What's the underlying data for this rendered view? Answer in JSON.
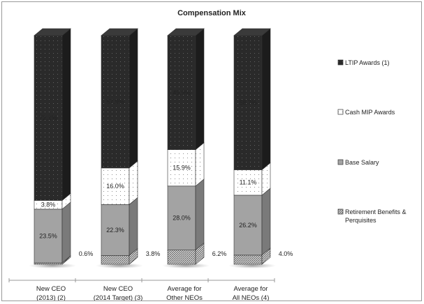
{
  "chart_data": {
    "type": "bar",
    "stacked": true,
    "title": "Compensation Mix",
    "categories": [
      "New CEO\n(2013) (2)",
      "New CEO\n(2014 Target) (3)",
      "Average for\nOther NEOs",
      "Average for\nAll NEOs (4)"
    ],
    "series": [
      {
        "name": "Retirement Benefits & Perquisites",
        "values": [
          0.6,
          3.8,
          6.2,
          4.0
        ],
        "color": "#bbbbbb",
        "pattern": "hatch"
      },
      {
        "name": "Base Salary",
        "values": [
          23.5,
          22.3,
          28.0,
          26.2
        ],
        "color": "#a3a3a3",
        "pattern": "solid"
      },
      {
        "name": "Cash MIP Awards",
        "values": [
          3.8,
          16.0,
          15.9,
          11.1
        ],
        "color": "#ffffff",
        "pattern": "dots"
      },
      {
        "name": "LTIP Awards (1)",
        "values": [
          72.1,
          57.9,
          49.9,
          58.7
        ],
        "color": "#2a2a2a",
        "pattern": "dots-dark"
      }
    ],
    "value_labels": [
      [
        "0.6%",
        "23.5%",
        "3.8%",
        "72.1%"
      ],
      [
        "3.8%",
        "22.3%",
        "16.0%",
        "57.9%"
      ],
      [
        "6.2%",
        "28.0%",
        "15.9%",
        "49.9%"
      ],
      [
        "4.0%",
        "26.2%",
        "11.1%",
        "58.7%"
      ]
    ],
    "legend": {
      "placement": "right",
      "entries": [
        "LTIP Awards (1)",
        "Cash MIP Awards",
        "Base Salary",
        "Retirement Benefits &\nPerquisites"
      ]
    },
    "ylim": [
      0,
      100
    ],
    "xlabel": "",
    "ylabel": ""
  }
}
